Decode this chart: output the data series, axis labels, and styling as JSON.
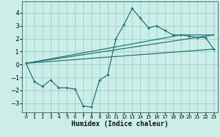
{
  "xlabel": "Humidex (Indice chaleur)",
  "xlim": [
    -0.5,
    23.5
  ],
  "ylim": [
    -3.7,
    4.9
  ],
  "background_color": "#cceee8",
  "grid_color": "#99cccc",
  "line_color": "#1a7070",
  "curve1_x": [
    0,
    1,
    2,
    3,
    4,
    5,
    6,
    7,
    8,
    9,
    10,
    11,
    12,
    13,
    14,
    15,
    16,
    17,
    18,
    19,
    20,
    21,
    22,
    23
  ],
  "curve1_y": [
    0.1,
    -1.3,
    -1.7,
    -1.2,
    -1.8,
    -1.8,
    -1.9,
    -3.2,
    -3.3,
    -1.2,
    -0.8,
    2.0,
    3.1,
    4.35,
    3.6,
    2.85,
    3.0,
    2.65,
    2.3,
    2.3,
    2.2,
    2.1,
    2.1,
    1.2
  ],
  "curve2_x": [
    0,
    23
  ],
  "curve2_y": [
    0.1,
    1.2
  ],
  "curve3_x": [
    0,
    23
  ],
  "curve3_y": [
    0.1,
    2.3
  ],
  "curve4_x": [
    0,
    19,
    23
  ],
  "curve4_y": [
    0.1,
    2.3,
    2.3
  ],
  "xticks": [
    0,
    1,
    2,
    3,
    4,
    5,
    6,
    7,
    8,
    9,
    10,
    11,
    12,
    13,
    14,
    15,
    16,
    17,
    18,
    19,
    20,
    21,
    22,
    23
  ],
  "yticks": [
    -3,
    -2,
    -1,
    0,
    1,
    2,
    3,
    4
  ],
  "xtick_fontsize": 5.0,
  "ytick_fontsize": 6.5,
  "xlabel_fontsize": 7.0
}
